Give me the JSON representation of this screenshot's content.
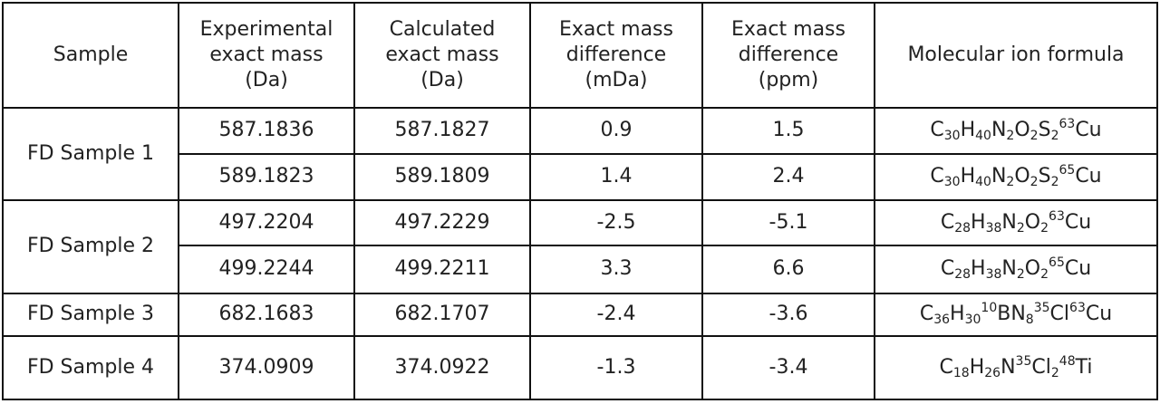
{
  "table": {
    "headers": [
      [
        "Sample"
      ],
      [
        "Experimental",
        "exact mass",
        "(Da)"
      ],
      [
        "Calculated",
        "exact mass",
        "(Da)"
      ],
      [
        "Exact mass",
        "difference",
        "(mDa)"
      ],
      [
        "Exact mass",
        "difference",
        "(ppm)"
      ],
      [
        "Molecular ion formula"
      ]
    ],
    "groups": [
      {
        "sample": "FD Sample 1",
        "rows": [
          {
            "experimental": "587.1836",
            "calculated": "587.1827",
            "mda": "0.9",
            "ppm": "1.5",
            "formula": [
              {
                "t": "C"
              },
              {
                "t": "30",
                "k": "sub"
              },
              {
                "t": "H"
              },
              {
                "t": "40",
                "k": "sub"
              },
              {
                "t": "N"
              },
              {
                "t": "2",
                "k": "sub"
              },
              {
                "t": "O"
              },
              {
                "t": "2",
                "k": "sub"
              },
              {
                "t": "S"
              },
              {
                "t": "2",
                "k": "sub"
              },
              {
                "t": "63",
                "k": "sup"
              },
              {
                "t": "Cu"
              }
            ]
          },
          {
            "experimental": "589.1823",
            "calculated": "589.1809",
            "mda": "1.4",
            "ppm": "2.4",
            "formula": [
              {
                "t": "C"
              },
              {
                "t": "30",
                "k": "sub"
              },
              {
                "t": "H"
              },
              {
                "t": "40",
                "k": "sub"
              },
              {
                "t": "N"
              },
              {
                "t": "2",
                "k": "sub"
              },
              {
                "t": "O"
              },
              {
                "t": "2",
                "k": "sub"
              },
              {
                "t": "S"
              },
              {
                "t": "2",
                "k": "sub"
              },
              {
                "t": "65",
                "k": "sup"
              },
              {
                "t": "Cu"
              }
            ]
          }
        ]
      },
      {
        "sample": "FD Sample 2",
        "rows": [
          {
            "experimental": "497.2204",
            "calculated": "497.2229",
            "mda": "-2.5",
            "ppm": "-5.1",
            "formula": [
              {
                "t": "C"
              },
              {
                "t": "28",
                "k": "sub"
              },
              {
                "t": "H"
              },
              {
                "t": "38",
                "k": "sub"
              },
              {
                "t": "N"
              },
              {
                "t": "2",
                "k": "sub"
              },
              {
                "t": "O"
              },
              {
                "t": "2",
                "k": "sub"
              },
              {
                "t": "63",
                "k": "sup"
              },
              {
                "t": "Cu"
              }
            ]
          },
          {
            "experimental": "499.2244",
            "calculated": "499.2211",
            "mda": "3.3",
            "ppm": "6.6",
            "formula": [
              {
                "t": "C"
              },
              {
                "t": "28",
                "k": "sub"
              },
              {
                "t": "H"
              },
              {
                "t": "38",
                "k": "sub"
              },
              {
                "t": "N"
              },
              {
                "t": "2",
                "k": "sub"
              },
              {
                "t": "O"
              },
              {
                "t": "2",
                "k": "sub"
              },
              {
                "t": "65",
                "k": "sup"
              },
              {
                "t": "Cu"
              }
            ]
          }
        ]
      },
      {
        "sample": "FD Sample 3",
        "rows": [
          {
            "experimental": "682.1683",
            "calculated": "682.1707",
            "mda": "-2.4",
            "ppm": "-3.6",
            "formula": [
              {
                "t": "C"
              },
              {
                "t": "36",
                "k": "sub"
              },
              {
                "t": "H"
              },
              {
                "t": "30",
                "k": "sub"
              },
              {
                "t": "10",
                "k": "sup"
              },
              {
                "t": "B"
              },
              {
                "t": "N"
              },
              {
                "t": "8",
                "k": "sub"
              },
              {
                "t": "35",
                "k": "sup"
              },
              {
                "t": "Cl"
              },
              {
                "t": "63",
                "k": "sup"
              },
              {
                "t": "Cu"
              }
            ]
          }
        ]
      },
      {
        "sample": "FD Sample 4",
        "rows": [
          {
            "experimental": "374.0909",
            "calculated": "374.0922",
            "mda": "-1.3",
            "ppm": "-3.4",
            "formula": [
              {
                "t": "C"
              },
              {
                "t": "18",
                "k": "sub"
              },
              {
                "t": "H"
              },
              {
                "t": "26",
                "k": "sub"
              },
              {
                "t": "N"
              },
              {
                "t": "35",
                "k": "sup"
              },
              {
                "t": "Cl"
              },
              {
                "t": "2",
                "k": "sub"
              },
              {
                "t": "48",
                "k": "sup"
              },
              {
                "t": "Ti"
              }
            ]
          }
        ]
      }
    ]
  }
}
